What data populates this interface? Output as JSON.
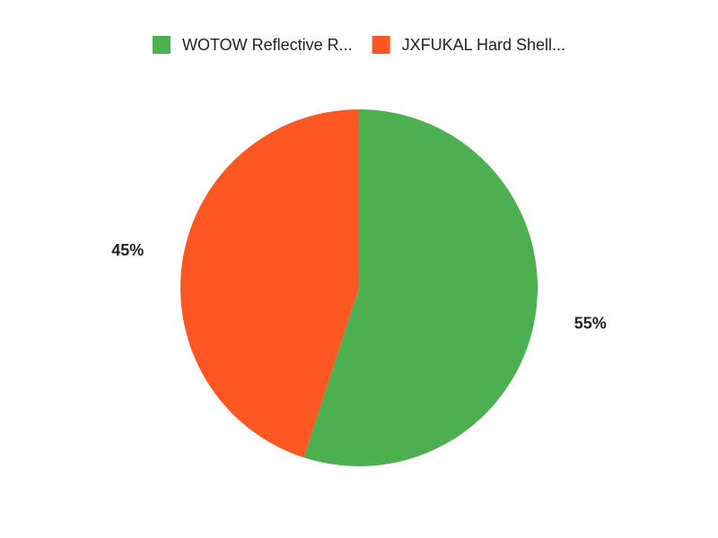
{
  "chart_data": {
    "type": "pie",
    "categories": [
      "WOTOW Reflective R...",
      "JXFUKAL Hard Shell..."
    ],
    "values": [
      55,
      45
    ],
    "value_labels": [
      "55%",
      "45%"
    ],
    "colors": [
      "#4caf50",
      "#ff5722"
    ],
    "legend": "top"
  }
}
